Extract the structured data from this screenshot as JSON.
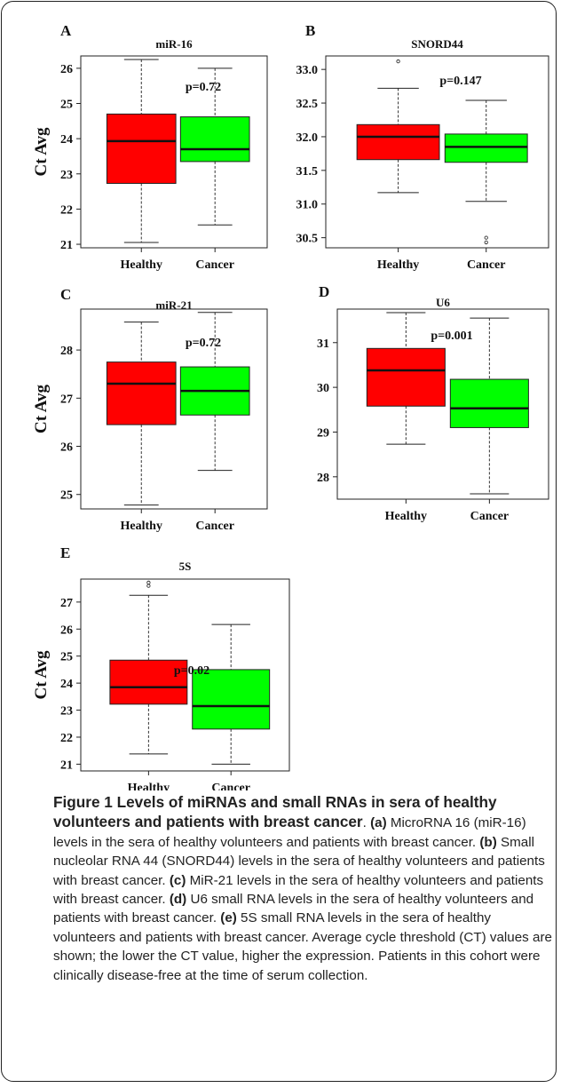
{
  "chart_data": [
    {
      "type": "box",
      "panel": "A",
      "title": "miR-16",
      "ylabel": "Ct Avg",
      "categories": [
        "Healthy",
        "Cancer"
      ],
      "ylim": [
        20.9,
        26.35
      ],
      "yticks": [
        21,
        22,
        23,
        24,
        25,
        26
      ],
      "annotation": "p=0.72",
      "boxes": [
        {
          "category": "Healthy",
          "whisker_low": 21.05,
          "q1": 22.73,
          "median": 23.93,
          "q3": 24.7,
          "whisker_high": 26.25,
          "outliers": [],
          "color": "#ff0000"
        },
        {
          "category": "Cancer",
          "whisker_low": 21.55,
          "q1": 23.35,
          "median": 23.7,
          "q3": 24.62,
          "whisker_high": 26.0,
          "outliers": [],
          "color": "#00ff00"
        }
      ]
    },
    {
      "type": "box",
      "panel": "B",
      "title": "SNORD44",
      "ylabel": "",
      "categories": [
        "Healthy",
        "Cancer"
      ],
      "ylim": [
        30.35,
        33.2
      ],
      "yticks": [
        30.5,
        31.0,
        31.5,
        32.0,
        32.5,
        33.0
      ],
      "yticklabels": [
        "30.5",
        "31.0",
        "31.5",
        "32.0",
        "32.5",
        "33.0"
      ],
      "annotation": "p=0.147",
      "boxes": [
        {
          "category": "Healthy",
          "whisker_low": 31.17,
          "q1": 31.66,
          "median": 32.0,
          "q3": 32.18,
          "whisker_high": 32.72,
          "outliers": [
            33.12
          ],
          "color": "#ff0000"
        },
        {
          "category": "Cancer",
          "whisker_low": 31.04,
          "q1": 31.62,
          "median": 31.85,
          "q3": 32.04,
          "whisker_high": 32.54,
          "outliers": [
            30.5,
            30.43
          ],
          "color": "#00ff00"
        }
      ]
    },
    {
      "type": "box",
      "panel": "C",
      "title": "miR-21",
      "ylabel": "Ct Avg",
      "categories": [
        "Healthy",
        "Cancer"
      ],
      "ylim": [
        24.7,
        28.85
      ],
      "yticks": [
        25,
        26,
        27,
        28
      ],
      "annotation": "p=0.72",
      "boxes": [
        {
          "category": "Healthy",
          "whisker_low": 24.78,
          "q1": 26.45,
          "median": 27.3,
          "q3": 27.75,
          "whisker_high": 28.58,
          "outliers": [],
          "color": "#ff0000"
        },
        {
          "category": "Cancer",
          "whisker_low": 25.5,
          "q1": 26.65,
          "median": 27.15,
          "q3": 27.65,
          "whisker_high": 28.78,
          "outliers": [],
          "color": "#00ff00"
        }
      ]
    },
    {
      "type": "box",
      "panel": "D",
      "title": "U6",
      "ylabel": "",
      "categories": [
        "Healthy",
        "Cancer"
      ],
      "ylim": [
        27.5,
        31.75
      ],
      "yticks": [
        28,
        29,
        30,
        31
      ],
      "annotation": "p=0.001",
      "boxes": [
        {
          "category": "Healthy",
          "whisker_low": 28.73,
          "q1": 29.58,
          "median": 30.38,
          "q3": 30.87,
          "whisker_high": 31.67,
          "outliers": [],
          "color": "#ff0000"
        },
        {
          "category": "Cancer",
          "whisker_low": 27.62,
          "q1": 29.1,
          "median": 29.53,
          "q3": 30.18,
          "whisker_high": 31.55,
          "outliers": [],
          "color": "#00ff00"
        }
      ]
    },
    {
      "type": "box",
      "panel": "E",
      "title": "5S",
      "ylabel": "Ct Avg",
      "categories": [
        "Healthy",
        "Cancer"
      ],
      "ylim": [
        20.75,
        27.85
      ],
      "yticks": [
        21,
        22,
        23,
        24,
        25,
        26,
        27
      ],
      "annotation": "p=0.02",
      "boxes": [
        {
          "category": "Healthy",
          "whisker_low": 21.38,
          "q1": 23.22,
          "median": 23.85,
          "q3": 24.85,
          "whisker_high": 27.25,
          "outliers": [
            27.72,
            27.6
          ],
          "color": "#ff0000"
        },
        {
          "category": "Cancer",
          "whisker_low": 21.0,
          "q1": 22.3,
          "median": 23.15,
          "q3": 24.5,
          "whisker_high": 26.17,
          "outliers": [],
          "color": "#00ff00"
        }
      ]
    }
  ],
  "caption": {
    "title": "Figure 1 Levels of miRNAs and small RNAs in sera of healthy volunteers and patients with breast cancer",
    "title_end": ".",
    "parts": [
      {
        "label": "(a)",
        "text": " MicroRNA 16 (miR-16) levels in the sera of healthy volunteers and patients with breast cancer. "
      },
      {
        "label": "(b)",
        "text": " Small nucleolar RNA 44 (SNORD44) levels in the sera of healthy volunteers and patients with breast cancer. "
      },
      {
        "label": "(c)",
        "text": " MiR-21 levels in the sera of healthy volunteers and patients with breast cancer. "
      },
      {
        "label": "(d)",
        "text": " U6 small RNA levels in the sera of healthy volunteers and patients with breast cancer. "
      },
      {
        "label": "(e)",
        "text": " 5S small RNA levels in the sera of healthy volunteers and patients with breast cancer. Average cycle threshold (CT) values are shown; the lower the CT value, higher the expression. Patients in this cohort were clinically disease-free at the time of serum collection."
      }
    ]
  }
}
